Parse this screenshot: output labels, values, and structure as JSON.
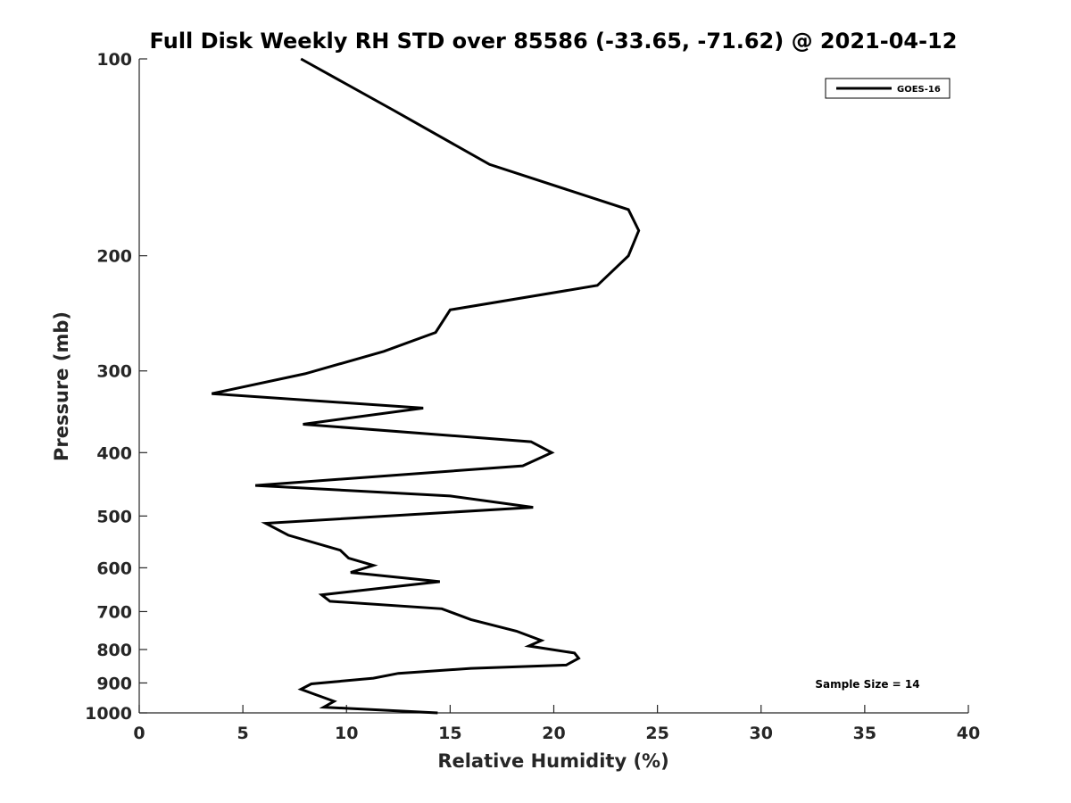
{
  "chart_data": {
    "type": "line",
    "title": "Full Disk Weekly RH STD over 85586 (-33.65, -71.62) @ 2021-04-12",
    "xlabel": "Relative Humidity (%)",
    "ylabel": "Pressure (mb)",
    "xlim": [
      0,
      40
    ],
    "ylim": [
      100,
      1000
    ],
    "yscale": "log",
    "y_reversed": true,
    "xticks": [
      0,
      5,
      10,
      15,
      20,
      25,
      30,
      35,
      40
    ],
    "yticks": [
      100,
      200,
      300,
      400,
      500,
      600,
      700,
      800,
      900,
      1000
    ],
    "grid": false,
    "legend_position": "top-right",
    "annotation": "Sample Size = 14",
    "line_color": "#000000",
    "series": [
      {
        "name": "GOES-16",
        "x": [
          7.8,
          12.3,
          16.9,
          23.6,
          24.1,
          23.6,
          22.1,
          15.0,
          14.3,
          11.8,
          8.0,
          3.5,
          13.7,
          7.9,
          18.9,
          19.9,
          18.5,
          5.6,
          15.0,
          19.0,
          6.1,
          7.2,
          9.7,
          10.1,
          11.3,
          10.2,
          14.5,
          8.8,
          9.2,
          14.6,
          16.0,
          18.2,
          19.4,
          18.8,
          21.0,
          21.2,
          20.6,
          16.0,
          12.5,
          11.3,
          8.3,
          7.8,
          8.4,
          9.4,
          8.9,
          14.4
        ],
        "y": [
          100,
          120,
          145,
          170,
          183,
          200,
          222,
          242,
          262,
          280,
          303,
          325,
          342,
          362,
          385,
          400,
          419,
          449,
          466,
          485,
          513,
          535,
          564,
          580,
          595,
          610,
          630,
          660,
          675,
          693,
          720,
          750,
          775,
          790,
          810,
          825,
          845,
          855,
          870,
          885,
          903,
          920,
          935,
          960,
          980,
          1000
        ]
      }
    ]
  }
}
